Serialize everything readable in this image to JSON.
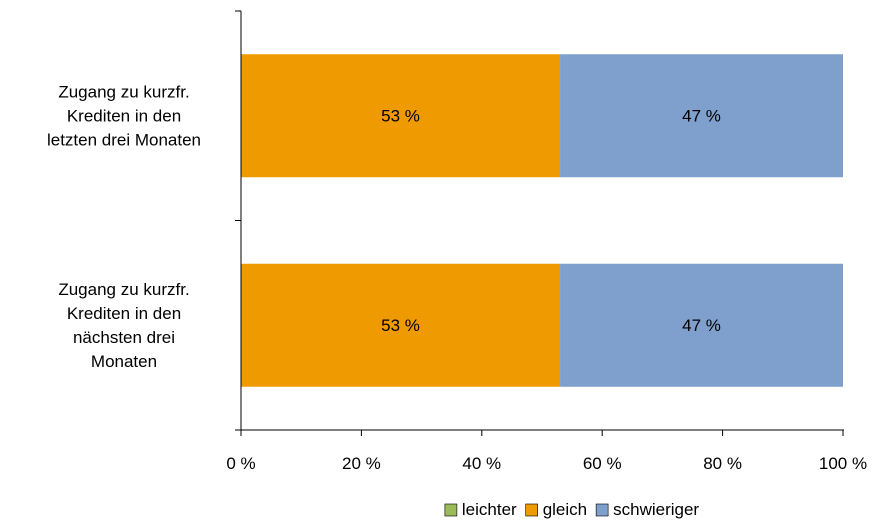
{
  "chart_data": {
    "type": "bar",
    "orientation": "horizontal",
    "stacked": true,
    "percent_stacked": true,
    "categories": [
      [
        "Zugang zu kurzfr.",
        "Krediten in den",
        "letzten drei Monaten"
      ],
      [
        "Zugang zu kurzfr.",
        "Krediten in den",
        "nächsten drei",
        "Monaten"
      ]
    ],
    "series": [
      {
        "name": "leichter",
        "color": "#9BBB59",
        "values": [
          0,
          0
        ],
        "labels": [
          "",
          ""
        ]
      },
      {
        "name": "gleich",
        "color": "#EE9A00",
        "values": [
          53,
          53
        ],
        "labels": [
          "53 %",
          "53 %"
        ]
      },
      {
        "name": "schwieriger",
        "color": "#7F9FCC",
        "values": [
          47,
          47
        ],
        "labels": [
          "47 %",
          "47 %"
        ]
      }
    ],
    "xlim": [
      0,
      100
    ],
    "x_ticks": [
      0,
      20,
      40,
      60,
      80,
      100
    ],
    "x_tick_labels": [
      "0 %",
      "20 %",
      "40 %",
      "60 %",
      "80 %",
      "100 %"
    ],
    "grid": false,
    "legend_position": "bottom"
  }
}
